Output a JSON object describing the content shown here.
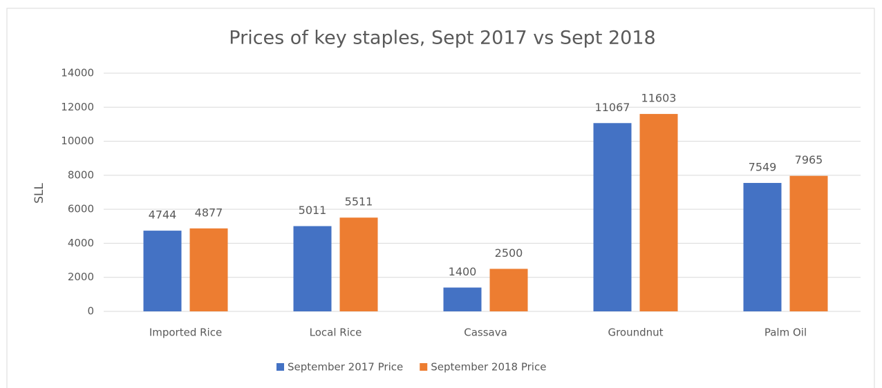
{
  "chart_data": {
    "type": "bar",
    "title": "Prices of key staples, Sept 2017 vs Sept 2018",
    "y_label": "SLL",
    "categories": [
      "Imported Rice",
      "Local Rice",
      "Cassava",
      "Groundnut",
      "Palm Oil"
    ],
    "series": [
      {
        "name": "September 2017 Price",
        "color": "#4472c4",
        "values": [
          4744,
          5011,
          1400,
          11067,
          7549
        ]
      },
      {
        "name": "September 2018 Price",
        "color": "#ed7d31",
        "values": [
          4877,
          5511,
          2500,
          11603,
          7965
        ]
      }
    ],
    "ylim": [
      0,
      14000
    ],
    "yticks": [
      0,
      2000,
      4000,
      6000,
      8000,
      10000,
      12000,
      14000
    ],
    "grid": true,
    "legend": "bottom"
  }
}
